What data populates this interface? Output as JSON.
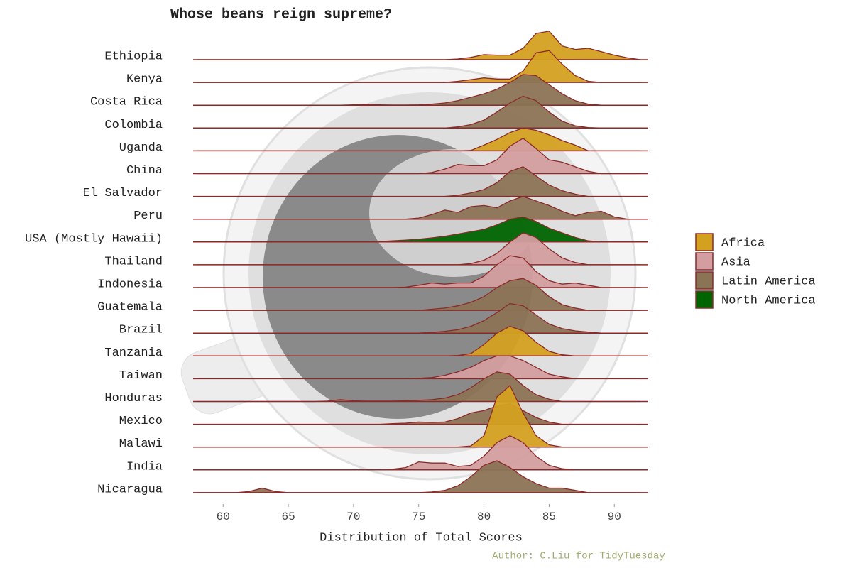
{
  "chart_data": {
    "type": "ridgeline",
    "title": "Whose beans reign supreme?",
    "xlabel": "Distribution of Total Scores",
    "caption": "Author: C.Liu for TidyTuesday",
    "xlim": [
      57.7,
      92.6
    ],
    "xticks": [
      60,
      65,
      70,
      75,
      80,
      85,
      90
    ],
    "line_color": "#8b2a2a",
    "series": [
      {
        "name": "Africa",
        "color": "#d4a020"
      },
      {
        "name": "Asia",
        "color": "#d49ea0"
      },
      {
        "name": "Latin America",
        "color": "#8b7355"
      },
      {
        "name": "North America",
        "color": "#006400"
      }
    ],
    "x": [
      58,
      59,
      60,
      61,
      62,
      63,
      64,
      65,
      66,
      67,
      68,
      69,
      70,
      71,
      72,
      73,
      74,
      75,
      76,
      77,
      78,
      79,
      80,
      81,
      82,
      83,
      84,
      85,
      86,
      87,
      88,
      89,
      90,
      91,
      92
    ],
    "ridges": [
      {
        "name": "Ethiopia",
        "region": "Africa",
        "values": [
          0,
          0,
          0,
          0,
          0,
          0,
          0,
          0,
          0,
          0,
          0,
          0,
          0,
          0,
          0,
          0,
          0,
          0,
          0,
          0,
          0.03,
          0.1,
          0.22,
          0.2,
          0.2,
          0.5,
          1.15,
          1.25,
          0.6,
          0.45,
          0.5,
          0.35,
          0.2,
          0.08,
          0
        ]
      },
      {
        "name": "Kenya",
        "region": "Africa",
        "values": [
          0,
          0,
          0,
          0,
          0,
          0,
          0,
          0,
          0,
          0,
          0,
          0,
          0,
          0,
          0,
          0,
          0,
          0,
          0,
          0,
          0.05,
          0.12,
          0.2,
          0.15,
          0.15,
          0.5,
          1.3,
          1.4,
          0.8,
          0.3,
          0.05,
          0,
          0,
          0,
          0
        ]
      },
      {
        "name": "Costa Rica",
        "region": "Latin America",
        "values": [
          0,
          0,
          0,
          0,
          0,
          0,
          0,
          0,
          0,
          0,
          0,
          0,
          0.02,
          0.04,
          0.02,
          0.01,
          0.01,
          0.02,
          0.05,
          0.1,
          0.2,
          0.35,
          0.5,
          0.7,
          1.0,
          1.35,
          1.3,
          0.9,
          0.5,
          0.2,
          0.05,
          0,
          0,
          0,
          0
        ]
      },
      {
        "name": "Colombia",
        "region": "Latin America",
        "values": [
          0,
          0,
          0,
          0,
          0,
          0,
          0,
          0,
          0,
          0,
          0,
          0,
          0,
          0,
          0,
          0,
          0,
          0,
          0,
          0,
          0.05,
          0.15,
          0.35,
          0.7,
          1.1,
          1.4,
          1.2,
          0.7,
          0.3,
          0.1,
          0.02,
          0,
          0,
          0,
          0
        ]
      },
      {
        "name": "Uganda",
        "region": "Africa",
        "values": [
          0,
          0,
          0,
          0,
          0,
          0,
          0,
          0,
          0,
          0,
          0,
          0,
          0,
          0,
          0,
          0,
          0,
          0,
          0,
          0,
          0,
          0.02,
          0.25,
          0.5,
          0.8,
          1.0,
          0.9,
          0.7,
          0.45,
          0.25,
          0,
          0,
          0,
          0,
          0
        ]
      },
      {
        "name": "China",
        "region": "Asia",
        "values": [
          0,
          0,
          0,
          0,
          0,
          0,
          0,
          0,
          0,
          0,
          0,
          0,
          0,
          0,
          0,
          0,
          0,
          0,
          0.05,
          0.2,
          0.4,
          0.35,
          0.35,
          0.6,
          1.2,
          1.55,
          1.1,
          0.6,
          0.5,
          0.3,
          0.1,
          0,
          0,
          0,
          0
        ]
      },
      {
        "name": "El Salvador",
        "region": "Latin America",
        "values": [
          0,
          0,
          0,
          0,
          0,
          0,
          0,
          0,
          0,
          0,
          0,
          0,
          0,
          0,
          0,
          0,
          0,
          0,
          0,
          0,
          0.05,
          0.15,
          0.3,
          0.6,
          1.1,
          1.3,
          0.9,
          0.5,
          0.25,
          0.1,
          0,
          0,
          0,
          0,
          0
        ]
      },
      {
        "name": "Peru",
        "region": "Latin America",
        "values": [
          0,
          0,
          0,
          0,
          0,
          0,
          0,
          0,
          0,
          0,
          0,
          0,
          0,
          0,
          0,
          0,
          0,
          0.05,
          0.2,
          0.4,
          0.3,
          0.55,
          0.6,
          0.5,
          0.8,
          1.0,
          0.8,
          0.6,
          0.35,
          0.15,
          0.3,
          0.35,
          0.1,
          0,
          0
        ]
      },
      {
        "name": "USA (Mostly Hawaii)",
        "region": "North America",
        "values": [
          0,
          0,
          0,
          0,
          0,
          0,
          0,
          0,
          0,
          0,
          0,
          0,
          0,
          0,
          0.02,
          0.05,
          0.08,
          0.12,
          0.18,
          0.25,
          0.35,
          0.45,
          0.55,
          0.75,
          1.0,
          1.1,
          0.9,
          0.6,
          0.4,
          0.2,
          0.05,
          0,
          0,
          0,
          0
        ]
      },
      {
        "name": "Thailand",
        "region": "Asia",
        "values": [
          0,
          0,
          0,
          0,
          0,
          0,
          0,
          0,
          0,
          0,
          0,
          0,
          0,
          0,
          0,
          0,
          0,
          0,
          0,
          0,
          0,
          0.05,
          0.2,
          0.5,
          1.0,
          1.4,
          1.2,
          0.7,
          0.3,
          0.1,
          0,
          0,
          0,
          0,
          0
        ]
      },
      {
        "name": "Indonesia",
        "region": "Asia",
        "values": [
          0,
          0,
          0,
          0,
          0,
          0,
          0,
          0,
          0,
          0,
          0,
          0,
          0,
          0,
          0,
          0,
          0.02,
          0.1,
          0.2,
          0.15,
          0.2,
          0.2,
          0.5,
          1.0,
          1.4,
          1.3,
          0.7,
          0.3,
          0.15,
          0.2,
          0.1,
          0,
          0,
          0,
          0
        ]
      },
      {
        "name": "Guatemala",
        "region": "Latin America",
        "values": [
          0,
          0,
          0,
          0,
          0,
          0,
          0,
          0,
          0,
          0,
          0,
          0,
          0,
          0,
          0,
          0,
          0,
          0,
          0.05,
          0.1,
          0.2,
          0.35,
          0.6,
          1.0,
          1.3,
          1.4,
          1.1,
          0.6,
          0.25,
          0.1,
          0,
          0,
          0,
          0,
          0
        ]
      },
      {
        "name": "Brazil",
        "region": "Latin America",
        "values": [
          0,
          0,
          0,
          0,
          0,
          0,
          0,
          0,
          0,
          0,
          0,
          0,
          0,
          0,
          0,
          0,
          0,
          0,
          0.03,
          0.08,
          0.15,
          0.3,
          0.55,
          0.9,
          1.3,
          1.2,
          0.8,
          0.4,
          0.2,
          0.1,
          0.05,
          0,
          0,
          0,
          0
        ]
      },
      {
        "name": "Tanzania",
        "region": "Africa",
        "values": [
          0,
          0,
          0,
          0,
          0,
          0,
          0,
          0,
          0,
          0,
          0,
          0,
          0,
          0,
          0,
          0,
          0,
          0,
          0,
          0,
          0.02,
          0.1,
          0.5,
          1.0,
          1.3,
          1.1,
          0.6,
          0.2,
          0.05,
          0,
          0,
          0,
          0,
          0,
          0
        ]
      },
      {
        "name": "Taiwan",
        "region": "Asia",
        "values": [
          0,
          0,
          0,
          0,
          0,
          0,
          0,
          0,
          0,
          0,
          0,
          0,
          0,
          0,
          0,
          0,
          0,
          0.02,
          0.05,
          0.15,
          0.3,
          0.5,
          0.8,
          1.0,
          1.0,
          0.8,
          0.5,
          0.2,
          0.08,
          0,
          0,
          0,
          0,
          0,
          0
        ]
      },
      {
        "name": "Honduras",
        "region": "Latin America",
        "values": [
          0,
          0,
          0,
          0,
          0,
          0,
          0,
          0,
          0,
          0,
          0.02,
          0.08,
          0.03,
          0.02,
          0.02,
          0.02,
          0.03,
          0.05,
          0.08,
          0.15,
          0.3,
          0.6,
          1.0,
          1.3,
          1.2,
          0.7,
          0.3,
          0.1,
          0,
          0,
          0,
          0,
          0,
          0,
          0
        ]
      },
      {
        "name": "Mexico",
        "region": "Latin America",
        "values": [
          0,
          0,
          0,
          0,
          0,
          0,
          0,
          0,
          0,
          0,
          0,
          0,
          0,
          0,
          0,
          0.03,
          0.05,
          0.1,
          0.08,
          0.1,
          0.25,
          0.5,
          0.6,
          0.8,
          0.9,
          0.6,
          0.3,
          0.1,
          0,
          0,
          0,
          0,
          0,
          0,
          0
        ]
      },
      {
        "name": "Malawi",
        "region": "Africa",
        "values": [
          0,
          0,
          0,
          0,
          0,
          0,
          0,
          0,
          0,
          0,
          0,
          0,
          0,
          0,
          0,
          0,
          0,
          0,
          0,
          0,
          0,
          0.05,
          0.5,
          2.2,
          2.7,
          1.5,
          0.5,
          0.1,
          0,
          0,
          0,
          0,
          0,
          0,
          0
        ]
      },
      {
        "name": "India",
        "region": "Asia",
        "values": [
          0,
          0,
          0,
          0,
          0,
          0,
          0,
          0,
          0,
          0,
          0,
          0,
          0,
          0,
          0,
          0.03,
          0.1,
          0.35,
          0.3,
          0.3,
          0.15,
          0.2,
          0.6,
          1.2,
          1.5,
          1.2,
          0.6,
          0.2,
          0.05,
          0,
          0,
          0,
          0,
          0,
          0
        ]
      },
      {
        "name": "Nicaragua",
        "region": "Latin America",
        "values": [
          0,
          0,
          0,
          0,
          0.05,
          0.2,
          0.05,
          0,
          0,
          0,
          0,
          0,
          0,
          0,
          0,
          0,
          0,
          0,
          0.03,
          0.1,
          0.3,
          0.7,
          1.2,
          1.4,
          1.1,
          0.7,
          0.4,
          0.2,
          0.2,
          0.1,
          0,
          0,
          0,
          0,
          0
        ]
      }
    ]
  }
}
